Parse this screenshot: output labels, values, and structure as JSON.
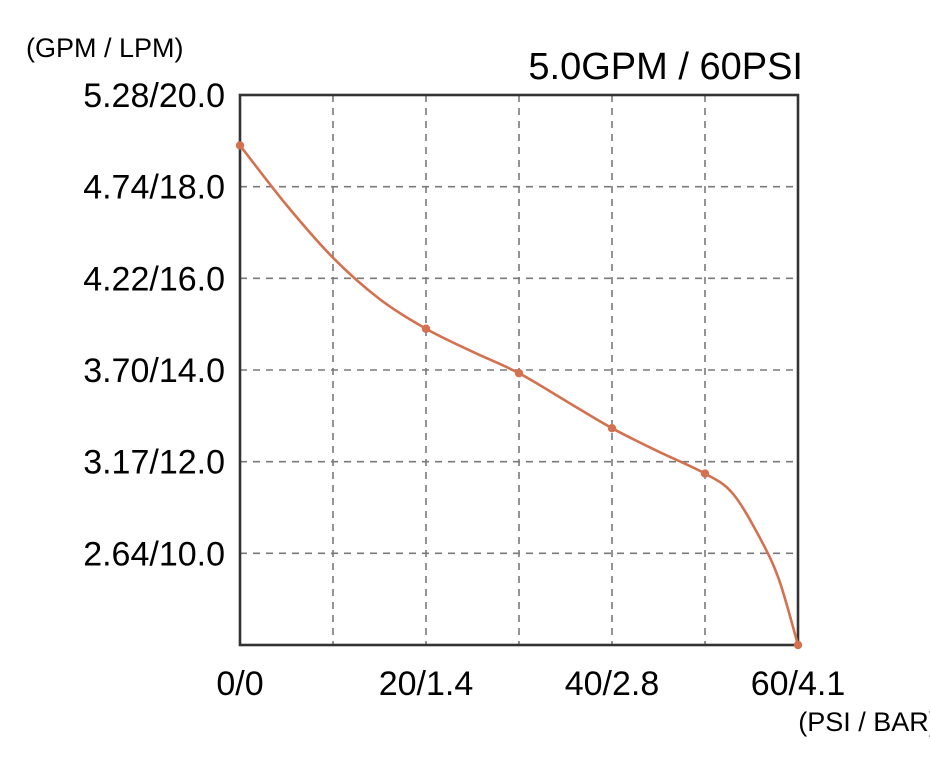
{
  "chart_data": {
    "type": "line",
    "title": "5.0GPM / 60PSI",
    "ylabel": "(GPM / LPM)",
    "xlabel": "(PSI / BAR)",
    "x_tick_labels": [
      "0/0",
      "20/1.4",
      "40/2.8",
      "60/4.1"
    ],
    "x_ticks": [
      0,
      20,
      40,
      60
    ],
    "y_tick_labels": [
      "5.28/20.0",
      "4.74/18.0",
      "4.22/16.0",
      "3.70/14.0",
      "3.17/12.0",
      "2.64/10.0"
    ],
    "y_ticks": [
      20.0,
      18.0,
      16.0,
      14.0,
      12.0,
      10.0
    ],
    "xlim": [
      0,
      60
    ],
    "ylim": [
      8.0,
      20.0
    ],
    "grid": true,
    "series": [
      {
        "color": "#d4714f",
        "marker_points": [
          {
            "x": 0,
            "y": 18.9
          },
          {
            "x": 20,
            "y": 14.9
          },
          {
            "x": 30,
            "y": 13.93
          },
          {
            "x": 40,
            "y": 12.73
          },
          {
            "x": 50,
            "y": 11.74
          },
          {
            "x": 60,
            "y": 8.0
          }
        ],
        "curve_points": [
          {
            "x": 0,
            "y": 18.9
          },
          {
            "x": 5,
            "y": 17.6
          },
          {
            "x": 10,
            "y": 16.45
          },
          {
            "x": 15,
            "y": 15.55
          },
          {
            "x": 20,
            "y": 14.9
          },
          {
            "x": 25,
            "y": 14.4
          },
          {
            "x": 30,
            "y": 13.93
          },
          {
            "x": 35,
            "y": 13.33
          },
          {
            "x": 40,
            "y": 12.73
          },
          {
            "x": 45,
            "y": 12.22
          },
          {
            "x": 50,
            "y": 11.74
          },
          {
            "x": 53,
            "y": 11.3
          },
          {
            "x": 56,
            "y": 10.3
          },
          {
            "x": 58,
            "y": 9.4
          },
          {
            "x": 60,
            "y": 8.0
          }
        ]
      }
    ]
  }
}
